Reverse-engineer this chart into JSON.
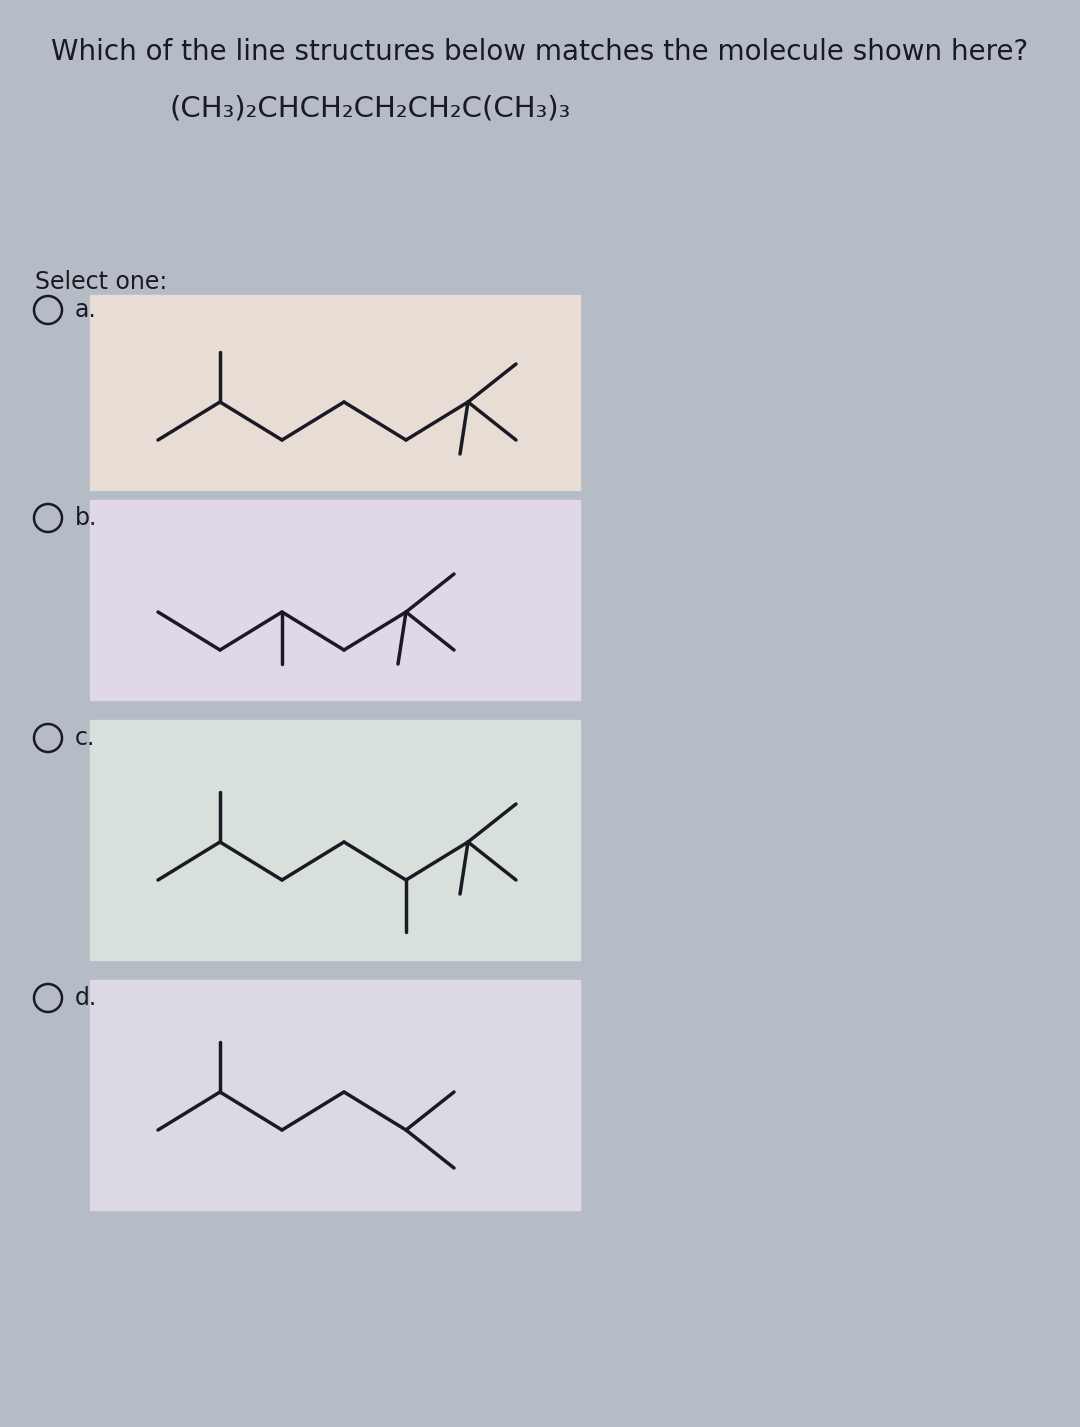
{
  "bg_color": "#b5bcc5",
  "panel_a_color": "#e8ddd4",
  "panel_b_color": "#e0d8e8",
  "panel_c_color": "#d8e0dc",
  "panel_d_color": "#dcd8e4",
  "title": "Which of the line structures below matches the molecule shown here?",
  "formula": "(CH₃)₂CHCH₂CH₂CH₂C(CH₃)₃",
  "select_text": "Select one:",
  "title_fontsize": 20,
  "formula_fontsize": 21,
  "select_fontsize": 17,
  "option_fontsize": 17,
  "line_color": "#1a1a25",
  "line_width": 2.5,
  "circle_r": 0.155
}
